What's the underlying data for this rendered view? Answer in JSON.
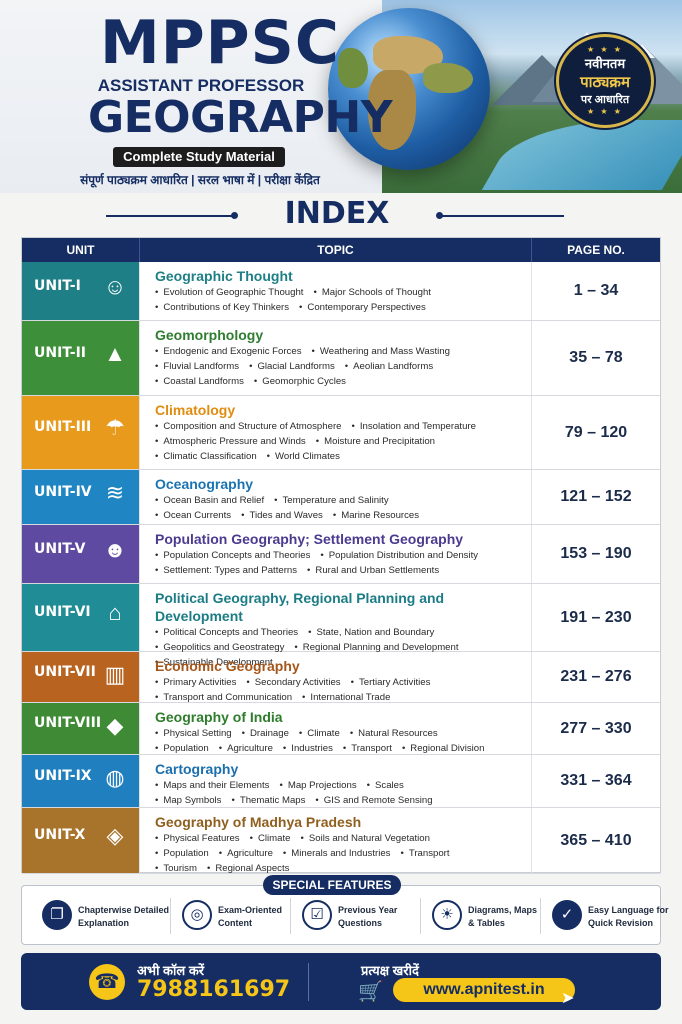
{
  "header": {
    "title_main": "MPPSC",
    "title_sub": "ASSISTANT PROFESSOR",
    "title_subject": "GEOGRAPHY",
    "badge": "Complete Study Material",
    "tagline": "संपूर्ण पाठ्यक्रम आधारित | सरल भाषा में | परीक्षा केंद्रित",
    "seal": {
      "line1": "नवीनतम",
      "line2": "पाठ्यक्रम",
      "line3": "पर आधारित",
      "stars": "★ ★ ★"
    }
  },
  "index": {
    "title": "INDEX",
    "columns": {
      "unit": "UNIT",
      "topic": "TOPIC",
      "page": "PAGE NO."
    },
    "rows": [
      {
        "unit": "UNIT-I",
        "icon": "brain-head-icon",
        "color": "#1f7f86",
        "title_color": "#1f7f86",
        "title": "Geographic Thought",
        "lines": [
          [
            "Evolution of Geographic Thought",
            "Major Schools of Thought"
          ],
          [
            "Contributions of Key Thinkers",
            "Contemporary Perspectives"
          ]
        ],
        "pages": "1 – 34"
      },
      {
        "unit": "UNIT-II",
        "icon": "mountain-icon",
        "color": "#3d8f3a",
        "title_color": "#2f7d30",
        "title": "Geomorphology",
        "lines": [
          [
            "Endogenic and Exogenic Forces",
            "Weathering and Mass Wasting"
          ],
          [
            "Fluvial Landforms",
            "Glacial Landforms",
            "Aeolian Landforms"
          ],
          [
            "Coastal Landforms",
            "Geomorphic Cycles"
          ]
        ],
        "pages": "35 – 78"
      },
      {
        "unit": "UNIT-III",
        "icon": "weather-cloud-icon",
        "color": "#e89a1d",
        "title_color": "#df8d10",
        "title": "Climatology",
        "lines": [
          [
            "Composition and Structure of Atmosphere",
            "Insolation and Temperature"
          ],
          [
            "Atmospheric Pressure and Winds",
            "Moisture and Precipitation"
          ],
          [
            "Climatic Classification",
            "World Climates"
          ]
        ],
        "pages": "79 – 120"
      },
      {
        "unit": "UNIT-IV",
        "icon": "wave-icon",
        "color": "#1f86c3",
        "title_color": "#1b74b2",
        "title": "Oceanography",
        "lines": [
          [
            "Ocean Basin and Relief",
            "Temperature and Salinity"
          ],
          [
            "Ocean Currents",
            "Tides and Waves",
            "Marine Resources"
          ]
        ],
        "pages": "121 – 152"
      },
      {
        "unit": "UNIT-V",
        "icon": "people-group-icon",
        "color": "#5e4aa0",
        "title_color": "#4b3b8f",
        "title": "Population Geography; Settlement Geography",
        "lines": [
          [
            "Population Concepts and Theories",
            "Population Distribution and Density"
          ],
          [
            "Settlement: Types and Patterns",
            "Rural and Urban Settlements"
          ]
        ],
        "pages": "153 – 190"
      },
      {
        "unit": "UNIT-VI",
        "icon": "government-building-icon",
        "color": "#1f8c96",
        "title_color": "#1b7c86",
        "title": "Political Geography, Regional Planning and Development",
        "lines": [
          [
            "Political Concepts and Theories",
            "State, Nation and Boundary"
          ],
          [
            "Geopolitics and Geostrategy",
            "Regional Planning and Development"
          ],
          [
            "Sustainable Development"
          ]
        ],
        "pages": "191 – 230"
      },
      {
        "unit": "UNIT-VII",
        "icon": "bar-chart-growth-icon",
        "color": "#b8631f",
        "title_color": "#a5561a",
        "title": "Economic Geography",
        "lines": [
          [
            "Primary Activities",
            "Secondary Activities",
            "Tertiary Activities"
          ],
          [
            "Transport and Communication",
            "International Trade"
          ]
        ],
        "pages": "231 – 276"
      },
      {
        "unit": "UNIT-VIII",
        "icon": "india-map-icon",
        "color": "#3f8a34",
        "title_color": "#2f7d2c",
        "title": "Geography of India",
        "lines": [
          [
            "Physical Setting",
            "Drainage",
            "Climate",
            "Natural Resources"
          ],
          [
            "Population",
            "Agriculture",
            "Industries",
            "Transport",
            "Regional Division"
          ]
        ],
        "pages": "277 – 330"
      },
      {
        "unit": "UNIT-IX",
        "icon": "globe-grid-icon",
        "color": "#1f7fbf",
        "title_color": "#1b6fae",
        "title": "Cartography",
        "lines": [
          [
            "Maps and their Elements",
            "Map Projections",
            "Scales"
          ],
          [
            "Map Symbols",
            "Thematic Maps",
            "GIS and Remote Sensing"
          ]
        ],
        "pages": "331 – 364"
      },
      {
        "unit": "UNIT-X",
        "icon": "madhya-pradesh-map-icon",
        "color": "#a8742c",
        "title_color": "#8f5f1f",
        "title": "Geography of Madhya Pradesh",
        "lines": [
          [
            "Physical Features",
            "Climate",
            "Soils and Natural Vegetation"
          ],
          [
            "Population",
            "Agriculture",
            "Minerals and Industries",
            "Transport"
          ],
          [
            "Tourism",
            "Regional Aspects"
          ]
        ],
        "pages": "365 – 410"
      }
    ]
  },
  "features": {
    "title": "SPECIAL FEATURES",
    "items": [
      {
        "icon": "open-book-icon",
        "line1": "Chapterwise Detailed",
        "line2": "Explanation"
      },
      {
        "icon": "target-icon",
        "line1": "Exam-Oriented",
        "line2": "Content"
      },
      {
        "icon": "checklist-icon",
        "line1": "Previous Year",
        "line2": "Questions"
      },
      {
        "icon": "lightbulb-icon",
        "line1": "Diagrams, Maps",
        "line2": "& Tables"
      },
      {
        "icon": "checkmark-icon",
        "line1": "Easy Language for",
        "line2": "Quick Revision"
      }
    ]
  },
  "footer": {
    "call_label": "अभी कॉल करें",
    "phone": "7988161697",
    "buy_label": "प्रत्यक्ष खरीदें",
    "website": "www.apnitest.in"
  }
}
